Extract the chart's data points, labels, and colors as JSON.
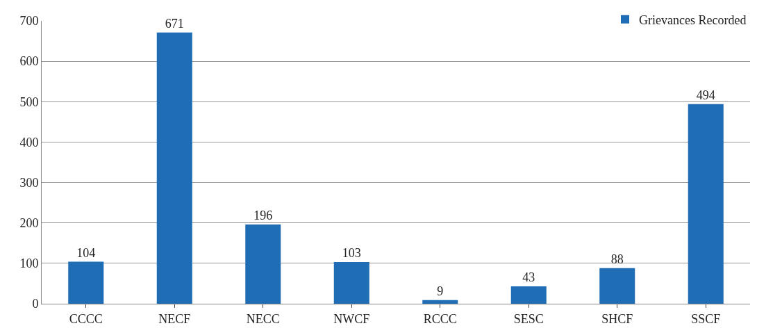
{
  "chart_data": {
    "type": "bar",
    "categories": [
      "CCCC",
      "NECF",
      "NECC",
      "NWCF",
      "RCCC",
      "SESC",
      "SHCF",
      "SSCF"
    ],
    "series": [
      {
        "name": "Grievances Recorded",
        "color": "#1f6db5",
        "values": [
          104,
          671,
          196,
          103,
          9,
          43,
          88,
          494
        ]
      }
    ],
    "ylim": [
      0,
      700
    ],
    "yticks": [
      0,
      100,
      200,
      300,
      400,
      500,
      600,
      700
    ],
    "grid": "y",
    "legend": "top right",
    "data_labels": true
  }
}
